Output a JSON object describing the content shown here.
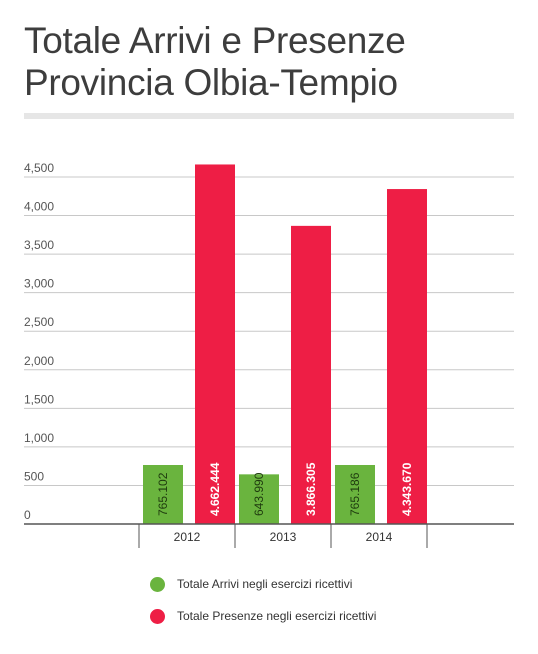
{
  "chart_data": {
    "type": "bar",
    "title": "Totale Arrivi e Presenze",
    "subtitle": "Provincia Olbia-Tempio",
    "categories": [
      "2012",
      "2013",
      "2014"
    ],
    "series": [
      {
        "name": "Totale Arrivi negli esercizi ricettivi",
        "color": "#6ab43e",
        "values": [
          765.102,
          643.99,
          765.186
        ],
        "labels": [
          "765.102",
          "643.990",
          "765.186"
        ]
      },
      {
        "name": "Totale Presenze negli esercizi ricettivi",
        "color": "#ee1e45",
        "values": [
          4662.444,
          3866.305,
          4343.67
        ],
        "labels": [
          "4.662.444",
          "3.866.305",
          "4.343.670"
        ]
      }
    ],
    "yticks": [
      0,
      500,
      1000,
      1500,
      2000,
      2500,
      3000,
      3500,
      4000,
      4500
    ],
    "ytick_labels": [
      "0",
      "500",
      "1,000",
      "1,500",
      "2,000",
      "2,500",
      "3,000",
      "3,500",
      "4,000",
      "4,500"
    ],
    "ylim": [
      0,
      4500
    ],
    "grid": true,
    "legend": "bottom"
  }
}
